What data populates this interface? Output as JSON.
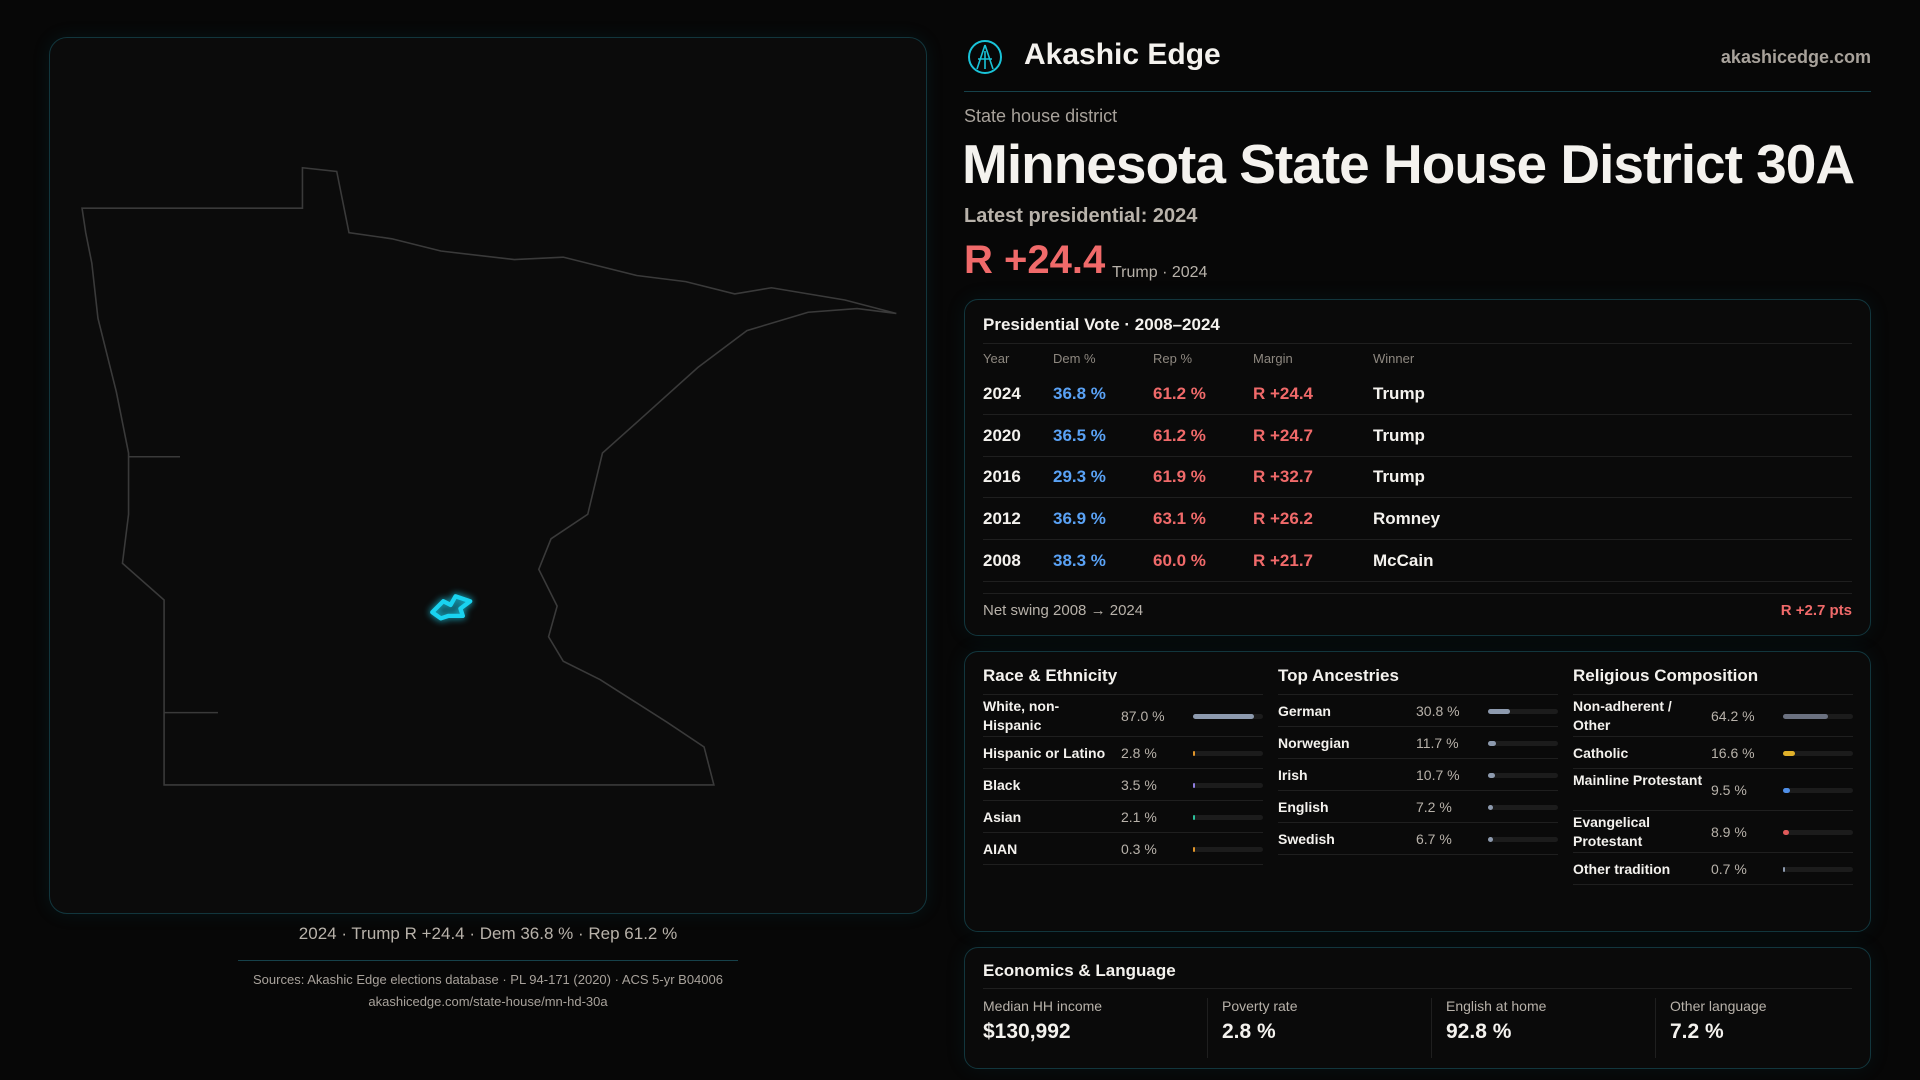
{
  "brand": {
    "name": "Akashic Edge",
    "domain": "akashicedge.com",
    "logo_icon": "akashic-logo-icon"
  },
  "map": {
    "caption": "2024 · Trump R +24.4 · Dem 36.8 % · Rep 61.2 %",
    "highlight_color": "#19d3f0"
  },
  "header": {
    "kicker": "State house district",
    "title": "Minnesota State House District 30A",
    "latest": "Latest presidential: 2024",
    "margin": "R +24.4",
    "margin_sub": "Trump · 2024"
  },
  "colors": {
    "dem": "#5aa2f5",
    "rep": "#f06a6a",
    "accent": "#19d3f0"
  },
  "presidential": {
    "title": "Presidential Vote · 2008–2024",
    "headers": [
      "Year",
      "Dem %",
      "Rep %",
      "Margin",
      "Winner"
    ],
    "rows": [
      {
        "year": "2024",
        "dem": "36.8 %",
        "rep": "61.2 %",
        "margin": "R +24.4",
        "winner": "Trump"
      },
      {
        "year": "2020",
        "dem": "36.5 %",
        "rep": "61.2 %",
        "margin": "R +24.7",
        "winner": "Trump"
      },
      {
        "year": "2016",
        "dem": "29.3 %",
        "rep": "61.9 %",
        "margin": "R +32.7",
        "winner": "Trump"
      },
      {
        "year": "2012",
        "dem": "36.9 %",
        "rep": "63.1 %",
        "margin": "R +26.2",
        "winner": "Romney"
      },
      {
        "year": "2008",
        "dem": "38.3 %",
        "rep": "60.0 %",
        "margin": "R +21.7",
        "winner": "McCain"
      }
    ],
    "swing_label": "Net swing 2008 → 2024",
    "swing_value": "R +2.7 pts"
  },
  "demographics": [
    {
      "title": "Race & Ethnicity",
      "items": [
        {
          "label": "White, non-Hispanic",
          "value": "87.0 %",
          "pct": 87.0,
          "color": "#8d9aae"
        },
        {
          "label": "Hispanic or Latino",
          "value": "2.8 %",
          "pct": 2.8,
          "color": "#e0952a"
        },
        {
          "label": "Black",
          "value": "3.5 %",
          "pct": 3.5,
          "color": "#8f7ee0"
        },
        {
          "label": "Asian",
          "value": "2.1 %",
          "pct": 2.1,
          "color": "#2bbf9a"
        },
        {
          "label": "AIAN",
          "value": "0.3 %",
          "pct": 0.3,
          "color": "#e0952a"
        }
      ]
    },
    {
      "title": "Top Ancestries",
      "items": [
        {
          "label": "German",
          "value": "30.8 %",
          "pct": 30.8,
          "color": "#8d9aae"
        },
        {
          "label": "Norwegian",
          "value": "11.7 %",
          "pct": 11.7,
          "color": "#8d9aae"
        },
        {
          "label": "Irish",
          "value": "10.7 %",
          "pct": 10.7,
          "color": "#8d9aae"
        },
        {
          "label": "English",
          "value": "7.2 %",
          "pct": 7.2,
          "color": "#8d9aae"
        },
        {
          "label": "Swedish",
          "value": "6.7 %",
          "pct": 6.7,
          "color": "#8d9aae"
        }
      ]
    },
    {
      "title": "Religious Composition",
      "items": [
        {
          "label": "Non-adherent / Other",
          "value": "64.2 %",
          "pct": 64.2,
          "color": "#6b7180"
        },
        {
          "label": "Catholic",
          "value": "16.6 %",
          "pct": 16.6,
          "color": "#e0b12a"
        },
        {
          "label": "Mainline Protestant",
          "value": "9.5 %",
          "pct": 9.5,
          "color": "#4f8fe8"
        },
        {
          "label": "Evangelical Protestant",
          "value": "8.9 %",
          "pct": 8.9,
          "color": "#e05a5a"
        },
        {
          "label": "Other tradition",
          "value": "0.7 %",
          "pct": 0.7,
          "color": "#8d9aae"
        }
      ]
    }
  ],
  "economics": {
    "title": "Economics & Language",
    "metrics": [
      {
        "label": "Median HH income",
        "value": "$130,992"
      },
      {
        "label": "Poverty rate",
        "value": "2.8 %"
      },
      {
        "label": "English at home",
        "value": "92.8 %"
      },
      {
        "label": "Other language",
        "value": "7.2 %"
      }
    ]
  },
  "footer": {
    "sources": "Sources: Akashic Edge elections database · PL 94-171 (2020) · ACS 5-yr B04006",
    "url": "akashicedge.com/state-house/mn-hd-30a"
  }
}
